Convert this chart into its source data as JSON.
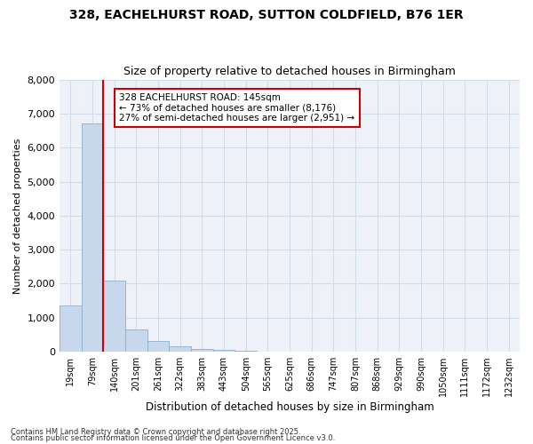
{
  "title_line1": "328, EACHELHURST ROAD, SUTTON COLDFIELD, B76 1ER",
  "title_line2": "Size of property relative to detached houses in Birmingham",
  "xlabel": "Distribution of detached houses by size in Birmingham",
  "ylabel": "Number of detached properties",
  "annotation_title": "328 EACHELHURST ROAD: 145sqm",
  "annotation_line2": "← 73% of detached houses are smaller (8,176)",
  "annotation_line3": "27% of semi-detached houses are larger (2,951) →",
  "property_line_color": "#cc0000",
  "annotation_box_color": "#cc0000",
  "bar_color": "#c8d8ec",
  "bar_edge_color": "#8ab0d0",
  "grid_color": "#d0dce8",
  "plot_bg_color": "#eef2f8",
  "fig_bg_color": "#ffffff",
  "categories": [
    "19sqm",
    "79sqm",
    "140sqm",
    "201sqm",
    "261sqm",
    "322sqm",
    "383sqm",
    "443sqm",
    "504sqm",
    "565sqm",
    "625sqm",
    "686sqm",
    "747sqm",
    "807sqm",
    "868sqm",
    "929sqm",
    "990sqm",
    "1050sqm",
    "1111sqm",
    "1172sqm",
    "1232sqm"
  ],
  "values": [
    1350,
    6700,
    2100,
    650,
    320,
    155,
    80,
    50,
    25,
    5,
    5,
    4,
    3,
    2,
    2,
    1,
    1,
    1,
    1,
    1,
    1
  ],
  "property_line_x": 2.0,
  "ylim": [
    0,
    8000
  ],
  "yticks": [
    0,
    1000,
    2000,
    3000,
    4000,
    5000,
    6000,
    7000,
    8000
  ],
  "footnote1": "Contains HM Land Registry data © Crown copyright and database right 2025.",
  "footnote2": "Contains public sector information licensed under the Open Government Licence v3.0."
}
